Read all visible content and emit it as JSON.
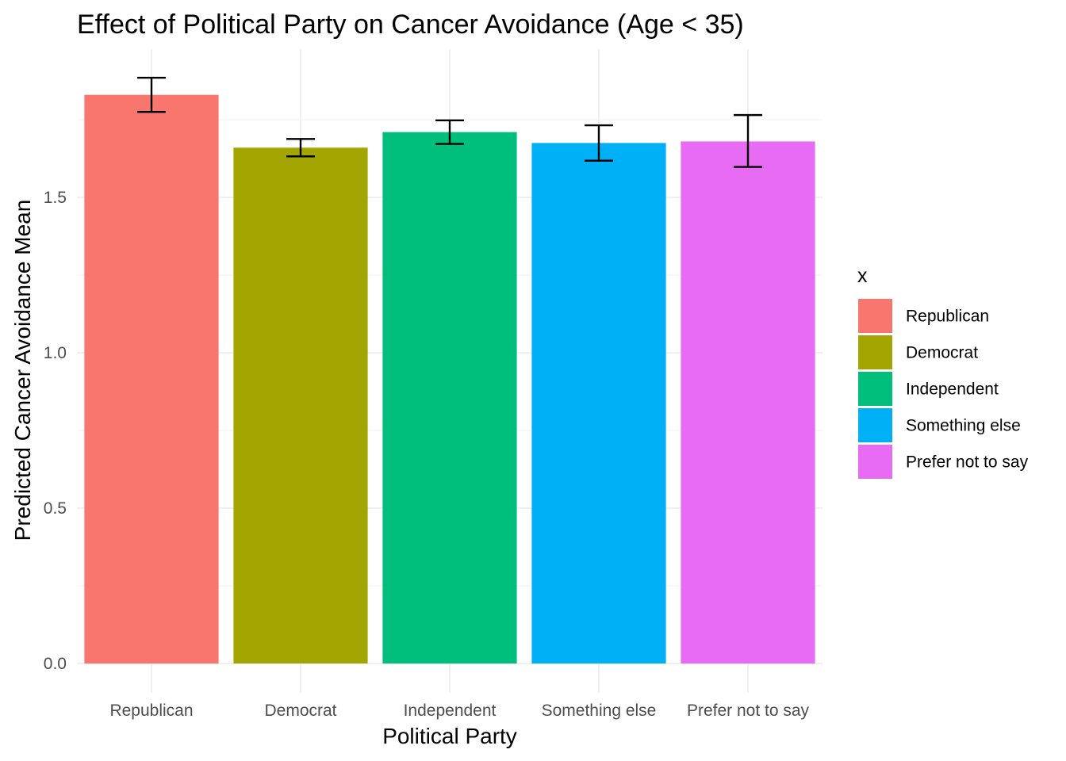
{
  "chart_data": {
    "type": "bar",
    "title": "Effect of Political Party on Cancer Avoidance (Age < 35)",
    "xlabel": "Political Party",
    "ylabel": "Predicted Cancer Avoidance Mean",
    "categories": [
      "Republican",
      "Democrat",
      "Independent",
      "Something else",
      "Prefer not to say"
    ],
    "values": [
      1.83,
      1.66,
      1.71,
      1.675,
      1.68
    ],
    "error_low": [
      1.775,
      1.632,
      1.672,
      1.618,
      1.598
    ],
    "error_high": [
      1.885,
      1.688,
      1.748,
      1.732,
      1.765
    ],
    "colors": [
      "#F8766D",
      "#A3A500",
      "#00BF7D",
      "#00B0F6",
      "#E76BF3"
    ],
    "ylim": [
      0,
      1.9
    ],
    "yticks": [
      0.0,
      0.5,
      1.0,
      1.5
    ],
    "ytick_labels": [
      "0.0",
      "0.5",
      "1.0",
      "1.5"
    ],
    "grid": true,
    "legend": {
      "title": "x",
      "position": "right",
      "entries": [
        "Republican",
        "Democrat",
        "Independent",
        "Something else",
        "Prefer not to say"
      ]
    }
  }
}
